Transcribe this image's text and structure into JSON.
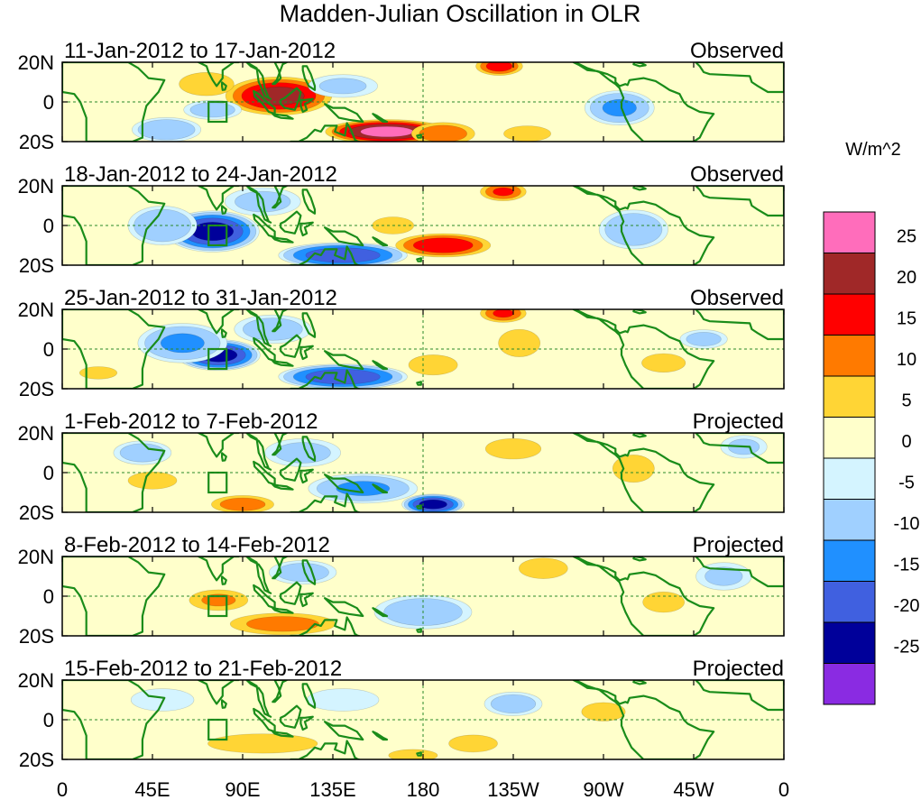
{
  "chart_data": {
    "type": "heatmap",
    "title": "Madden-Julian Oscillation in OLR",
    "colorbar_units": "W/m^2",
    "colorbar_levels": [
      "25",
      "20",
      "15",
      "10",
      "5",
      "0",
      "-5",
      "-10",
      "-15",
      "-20",
      "-25"
    ],
    "colorbar_colors": [
      "#ff6dbb",
      "#a02828",
      "#ff0000",
      "#ff7a00",
      "#ffd535",
      "#ffffcb",
      "#d4f4ff",
      "#a0d0ff",
      "#2090ff",
      "#4060e0",
      "#00009a",
      "#8a2be2"
    ],
    "y_ticks": [
      "20N",
      "0",
      "20S"
    ],
    "x_ticks": [
      "0",
      "45E",
      "90E",
      "135E",
      "180",
      "135W",
      "90W",
      "45W",
      "0"
    ],
    "lat_range": [
      -20,
      20
    ],
    "lon_range": [
      0,
      360
    ],
    "panels": [
      {
        "date_label": "11-Jan-2012 to 17-Jan-2012",
        "status": "Observed",
        "anomalies": [
          {
            "lon": 108,
            "lat": 3,
            "value": 22,
            "sx": 22,
            "sy": 8
          },
          {
            "lon": 72,
            "lat": 9,
            "value": 8,
            "sx": 14,
            "sy": 6
          },
          {
            "lon": 162,
            "lat": -15,
            "value": 27,
            "sx": 25,
            "sy": 5
          },
          {
            "lon": 190,
            "lat": -16,
            "value": 14,
            "sx": 14,
            "sy": 5
          },
          {
            "lon": 218,
            "lat": 18,
            "value": 17,
            "sx": 10,
            "sy": 4
          },
          {
            "lon": 232,
            "lat": -16,
            "value": 8,
            "sx": 12,
            "sy": 4
          },
          {
            "lon": 278,
            "lat": -3,
            "value": -10,
            "sx": 14,
            "sy": 7
          },
          {
            "lon": 310,
            "lat": 10,
            "value": 4,
            "sx": 12,
            "sy": 6
          },
          {
            "lon": 52,
            "lat": -14,
            "value": -9,
            "sx": 14,
            "sy": 5
          },
          {
            "lon": 75,
            "lat": -4,
            "value": -7,
            "sx": 12,
            "sy": 4
          },
          {
            "lon": 140,
            "lat": 8,
            "value": -5,
            "sx": 15,
            "sy": 5
          },
          {
            "lon": 12,
            "lat": 10,
            "value": 3,
            "sx": 10,
            "sy": 6
          }
        ]
      },
      {
        "date_label": "18-Jan-2012 to 24-Jan-2012",
        "status": "Observed",
        "anomalies": [
          {
            "lon": 75,
            "lat": -3,
            "value": -22,
            "sx": 18,
            "sy": 8
          },
          {
            "lon": 50,
            "lat": 0,
            "value": -9,
            "sx": 14,
            "sy": 8
          },
          {
            "lon": 140,
            "lat": -15,
            "value": -19,
            "sx": 25,
            "sy": 5
          },
          {
            "lon": 100,
            "lat": 12,
            "value": -6,
            "sx": 16,
            "sy": 6
          },
          {
            "lon": 190,
            "lat": -10,
            "value": 19,
            "sx": 20,
            "sy": 5
          },
          {
            "lon": 165,
            "lat": 0,
            "value": 6,
            "sx": 12,
            "sy": 5
          },
          {
            "lon": 220,
            "lat": 17,
            "value": 15,
            "sx": 10,
            "sy": 4
          },
          {
            "lon": 285,
            "lat": -2,
            "value": -9,
            "sx": 14,
            "sy": 8
          },
          {
            "lon": 340,
            "lat": 14,
            "value": 4,
            "sx": 14,
            "sy": 6
          },
          {
            "lon": 30,
            "lat": 14,
            "value": 3,
            "sx": 16,
            "sy": 5
          }
        ]
      },
      {
        "date_label": "25-Jan-2012 to 31-Jan-2012",
        "status": "Observed",
        "anomalies": [
          {
            "lon": 78,
            "lat": -3,
            "value": -22,
            "sx": 16,
            "sy": 6
          },
          {
            "lon": 60,
            "lat": 3,
            "value": -10,
            "sx": 18,
            "sy": 8
          },
          {
            "lon": 140,
            "lat": -14,
            "value": -19,
            "sx": 25,
            "sy": 5
          },
          {
            "lon": 105,
            "lat": 10,
            "value": -7,
            "sx": 16,
            "sy": 6
          },
          {
            "lon": 185,
            "lat": -8,
            "value": 9,
            "sx": 12,
            "sy": 5
          },
          {
            "lon": 220,
            "lat": 18,
            "value": 15,
            "sx": 10,
            "sy": 4
          },
          {
            "lon": 228,
            "lat": 3,
            "value": 6,
            "sx": 12,
            "sy": 8
          },
          {
            "lon": 300,
            "lat": -7,
            "value": 5,
            "sx": 14,
            "sy": 6
          },
          {
            "lon": 320,
            "lat": 5,
            "value": -6,
            "sx": 10,
            "sy": 4
          },
          {
            "lon": 18,
            "lat": -12,
            "value": 5,
            "sx": 12,
            "sy": 4
          }
        ]
      },
      {
        "date_label": "1-Feb-2012 to 7-Feb-2012",
        "status": "Projected",
        "anomalies": [
          {
            "lon": 185,
            "lat": -16,
            "value": -22,
            "sx": 12,
            "sy": 4
          },
          {
            "lon": 150,
            "lat": -8,
            "value": -10,
            "sx": 22,
            "sy": 6
          },
          {
            "lon": 90,
            "lat": -16,
            "value": 13,
            "sx": 14,
            "sy": 4
          },
          {
            "lon": 45,
            "lat": -4,
            "value": 6,
            "sx": 14,
            "sy": 5
          },
          {
            "lon": 40,
            "lat": 10,
            "value": -7,
            "sx": 12,
            "sy": 5
          },
          {
            "lon": 225,
            "lat": 12,
            "value": 6,
            "sx": 16,
            "sy": 6
          },
          {
            "lon": 285,
            "lat": 2,
            "value": 6,
            "sx": 12,
            "sy": 8
          },
          {
            "lon": 120,
            "lat": 10,
            "value": -6,
            "sx": 16,
            "sy": 6
          },
          {
            "lon": 340,
            "lat": 13,
            "value": -5,
            "sx": 10,
            "sy": 5
          }
        ]
      },
      {
        "date_label": "8-Feb-2012 to 14-Feb-2012",
        "status": "Projected",
        "anomalies": [
          {
            "lon": 110,
            "lat": -14,
            "value": 12,
            "sx": 24,
            "sy": 5
          },
          {
            "lon": 78,
            "lat": -2,
            "value": 10,
            "sx": 14,
            "sy": 5
          },
          {
            "lon": 180,
            "lat": -8,
            "value": -8,
            "sx": 20,
            "sy": 7
          },
          {
            "lon": 120,
            "lat": 12,
            "value": -7,
            "sx": 14,
            "sy": 5
          },
          {
            "lon": 240,
            "lat": 14,
            "value": 6,
            "sx": 14,
            "sy": 6
          },
          {
            "lon": 300,
            "lat": -3,
            "value": 6,
            "sx": 12,
            "sy": 6
          },
          {
            "lon": 330,
            "lat": 10,
            "value": -5,
            "sx": 12,
            "sy": 6
          },
          {
            "lon": 30,
            "lat": -12,
            "value": 4,
            "sx": 14,
            "sy": 5
          }
        ]
      },
      {
        "date_label": "15-Feb-2012 to 21-Feb-2012",
        "status": "Projected",
        "anomalies": [
          {
            "lon": 100,
            "lat": -12,
            "value": 8,
            "sx": 28,
            "sy": 5
          },
          {
            "lon": 175,
            "lat": -18,
            "value": 9,
            "sx": 12,
            "sy": 3
          },
          {
            "lon": 205,
            "lat": -12,
            "value": 6,
            "sx": 14,
            "sy": 5
          },
          {
            "lon": 225,
            "lat": 8,
            "value": -7,
            "sx": 12,
            "sy": 5
          },
          {
            "lon": 270,
            "lat": 4,
            "value": 5,
            "sx": 14,
            "sy": 6
          },
          {
            "lon": 310,
            "lat": 10,
            "value": 4,
            "sx": 14,
            "sy": 5
          },
          {
            "lon": 140,
            "lat": 10,
            "value": -4,
            "sx": 16,
            "sy": 5
          },
          {
            "lon": 50,
            "lat": 10,
            "value": -4,
            "sx": 14,
            "sy": 5
          }
        ]
      }
    ]
  }
}
